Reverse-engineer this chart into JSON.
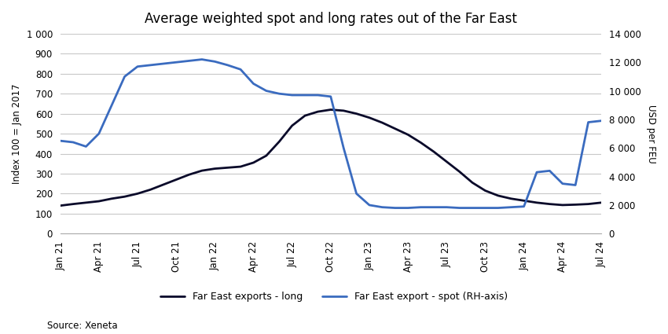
{
  "title": "Average weighted spot and long rates out of the Far East",
  "source": "Source: Xeneta",
  "left_ylabel": "Index 100 = Jan 2017",
  "right_ylabel": "USD per FEU",
  "left_ylim": [
    0,
    1000
  ],
  "right_ylim": [
    0,
    14000
  ],
  "left_yticks": [
    0,
    100,
    200,
    300,
    400,
    500,
    600,
    700,
    800,
    900,
    1000
  ],
  "right_yticks": [
    0,
    2000,
    4000,
    6000,
    8000,
    10000,
    12000,
    14000
  ],
  "xtick_labels": [
    "Jan 21",
    "Apr 21",
    "Jul 21",
    "Oct 21",
    "Jan 22",
    "Apr 22",
    "Jul 22",
    "Oct 22",
    "Jan 23",
    "Apr 23",
    "Jul 23",
    "Oct 23",
    "Jan 24",
    "Apr 24",
    "Jul 24"
  ],
  "xtick_months": [
    0,
    3,
    6,
    9,
    12,
    15,
    18,
    21,
    24,
    27,
    30,
    33,
    36,
    39,
    42
  ],
  "long_label": "Far East exports - long",
  "spot_label": "Far East export - spot (RH-axis)",
  "long_color": "#0a0a2a",
  "spot_color": "#3a6bbf",
  "long_linewidth": 2.0,
  "spot_linewidth": 2.0,
  "long_data": [
    140,
    148,
    155,
    162,
    175,
    185,
    200,
    220,
    245,
    270,
    295,
    315,
    325,
    330,
    335,
    355,
    390,
    460,
    540,
    590,
    610,
    620,
    615,
    600,
    580,
    555,
    525,
    495,
    455,
    410,
    360,
    310,
    255,
    215,
    190,
    175,
    165,
    155,
    148,
    143,
    145,
    148,
    155
  ],
  "spot_data": [
    6500,
    6400,
    6100,
    7000,
    9000,
    11000,
    11700,
    11800,
    11900,
    12000,
    12100,
    12200,
    12050,
    11800,
    11500,
    10500,
    10000,
    9800,
    9700,
    9700,
    9700,
    9600,
    6000,
    2800,
    2000,
    1850,
    1800,
    1800,
    1850,
    1850,
    1850,
    1800,
    1800,
    1800,
    1800,
    1850,
    1900,
    4300,
    4400,
    3500,
    3400,
    7800,
    7900
  ],
  "background_color": "#ffffff",
  "grid_color": "#c8c8c8",
  "title_fontsize": 12,
  "label_fontsize": 8.5,
  "tick_fontsize": 8.5,
  "legend_fontsize": 9
}
